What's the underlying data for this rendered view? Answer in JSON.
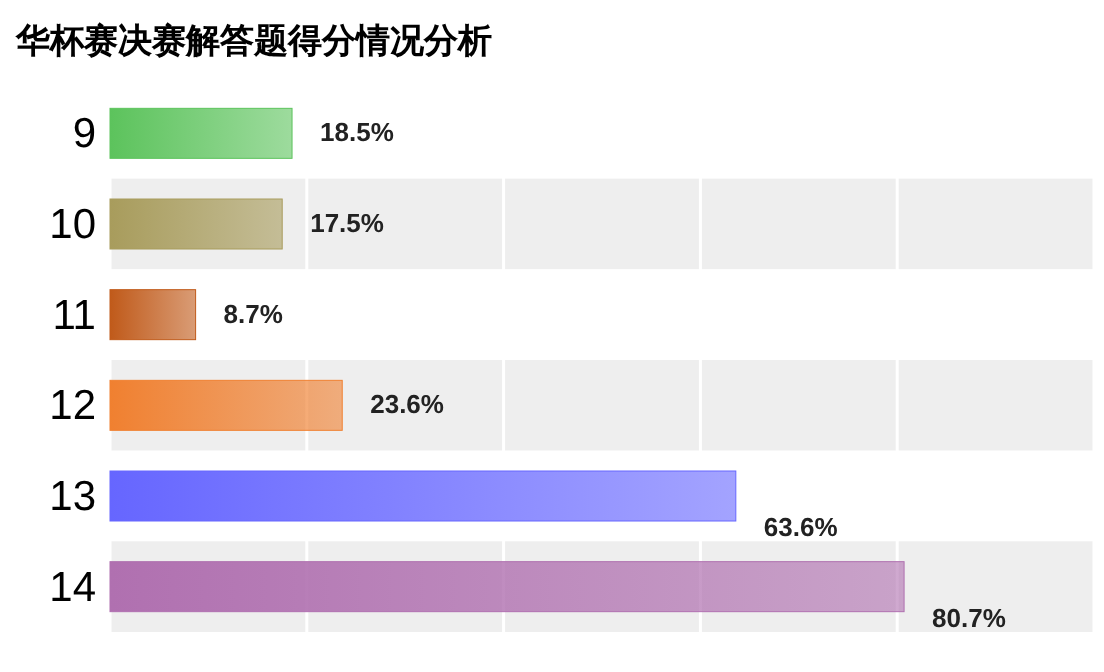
{
  "chart_data": {
    "type": "bar",
    "orientation": "horizontal",
    "title": "华杯赛决赛解答题得分情况分析",
    "categories": [
      "9",
      "10",
      "11",
      "12",
      "13",
      "14"
    ],
    "values": [
      18.5,
      17.5,
      8.7,
      23.6,
      63.6,
      80.7
    ],
    "colors": [
      "#5cc35c",
      "#a89c5c",
      "#c05a1a",
      "#f08030",
      "#6666ff",
      "#b070b0"
    ],
    "value_labels": [
      "18.5%",
      "17.5%",
      "8.7%",
      "23.6%",
      "63.6%",
      "80.7%"
    ],
    "xlim": [
      0,
      100
    ],
    "xticks": [
      {
        "value": 0,
        "label": null
      },
      {
        "value": 20,
        "label": null
      },
      {
        "value": 40,
        "label": null
      },
      {
        "value": 60,
        "label": null
      },
      {
        "value": 80,
        "label": null
      },
      {
        "value": 100,
        "label": null
      }
    ],
    "grid": "x",
    "tick_labels": "y"
  }
}
